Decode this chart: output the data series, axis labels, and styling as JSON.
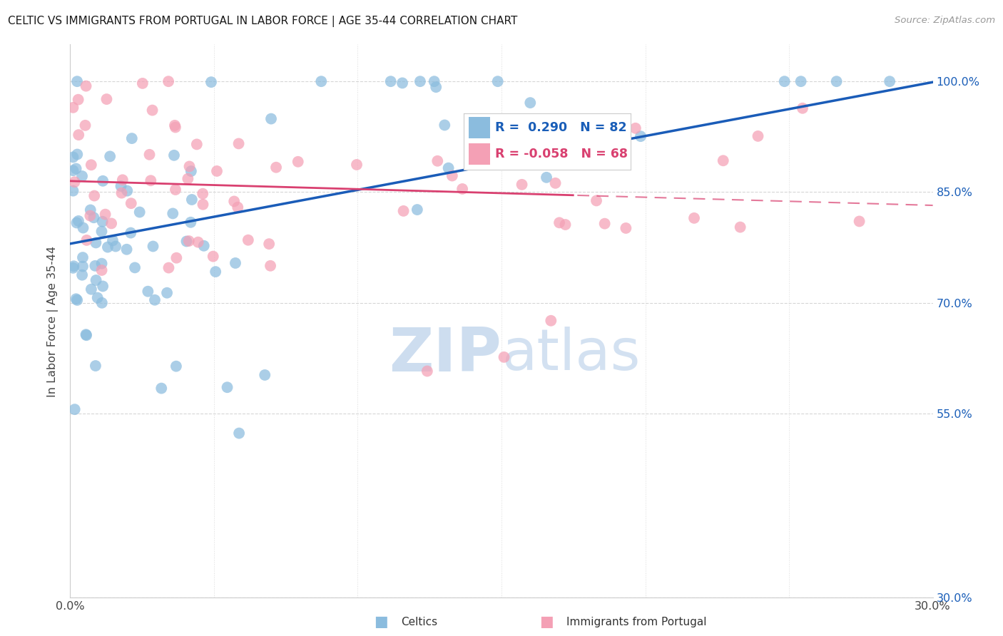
{
  "title": "CELTIC VS IMMIGRANTS FROM PORTUGAL IN LABOR FORCE | AGE 35-44 CORRELATION CHART",
  "source": "Source: ZipAtlas.com",
  "ylabel": "In Labor Force | Age 35-44",
  "xlim": [
    0.0,
    0.3
  ],
  "ylim": [
    0.3,
    1.05
  ],
  "yticks": [
    0.3,
    0.55,
    0.7,
    0.85,
    1.0
  ],
  "ytick_labels": [
    "30.0%",
    "55.0%",
    "70.0%",
    "85.0%",
    "100.0%"
  ],
  "xticks": [
    0.0,
    0.05,
    0.1,
    0.15,
    0.2,
    0.25,
    0.3
  ],
  "xtick_labels": [
    "0.0%",
    "",
    "",
    "",
    "",
    "",
    "30.0%"
  ],
  "blue_R": 0.29,
  "blue_N": 82,
  "pink_R": -0.058,
  "pink_N": 68,
  "blue_color": "#8BBCDE",
  "pink_color": "#F4A0B5",
  "blue_line_color": "#1A5CB8",
  "pink_line_color": "#D94070",
  "legend_text_color": "#1A5EB8",
  "watermark_zip_color": "#C8DCF0",
  "watermark_atlas_color": "#C8DCF0"
}
